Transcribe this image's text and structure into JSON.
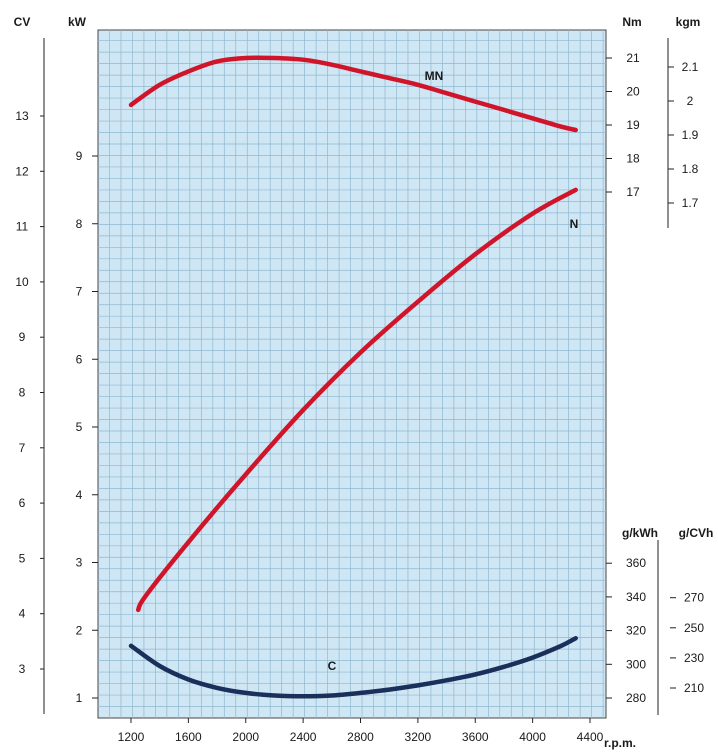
{
  "chart_data": {
    "type": "line",
    "x_label": "r.p.m.",
    "x_ticks": [
      1200,
      1600,
      2000,
      2400,
      2800,
      3200,
      3600,
      4000,
      4400
    ],
    "xlim": [
      1000,
      4400
    ],
    "grid": true,
    "axes": {
      "cv": {
        "label": "CV",
        "ticks": [
          3,
          4,
          5,
          6,
          7,
          8,
          9,
          10,
          11,
          12,
          13
        ]
      },
      "kw": {
        "label": "kW",
        "ticks": [
          1,
          2,
          3,
          4,
          5,
          6,
          7,
          8,
          9
        ]
      },
      "nm": {
        "label": "Nm",
        "ticks": [
          17,
          18,
          19,
          20,
          21
        ]
      },
      "kgm": {
        "label": "kgm",
        "ticks": [
          "1.7",
          "1.8",
          "1.9",
          "2",
          "2.1"
        ]
      },
      "gkwh": {
        "label": "g/kWh",
        "ticks": [
          280,
          300,
          320,
          340,
          360
        ]
      },
      "gcvh": {
        "label": "g/CVh",
        "ticks": [
          210,
          230,
          250,
          270
        ]
      }
    },
    "series": [
      {
        "name": "MN",
        "axis": "nm",
        "color": "#d0152b",
        "x": [
          1200,
          1400,
          1600,
          1800,
          2000,
          2200,
          2400,
          2600,
          2800,
          3000,
          3200,
          3400,
          3600,
          3800,
          4000,
          4200,
          4300
        ],
        "y": [
          19.6,
          20.2,
          20.6,
          20.9,
          21.0,
          21.0,
          20.95,
          20.8,
          20.6,
          20.4,
          20.2,
          19.95,
          19.7,
          19.45,
          19.2,
          18.95,
          18.85
        ]
      },
      {
        "name": "N",
        "axis": "kw",
        "color": "#d0152b",
        "x": [
          1250,
          1300,
          1600,
          2000,
          2400,
          2800,
          3200,
          3600,
          4000,
          4300
        ],
        "y": [
          2.3,
          2.5,
          3.3,
          4.3,
          5.25,
          6.1,
          6.85,
          7.55,
          8.15,
          8.5
        ]
      },
      {
        "name": "C",
        "axis": "gkwh",
        "color": "#1a2f5a",
        "x": [
          1200,
          1400,
          1600,
          1800,
          2000,
          2200,
          2400,
          2600,
          2800,
          3000,
          3200,
          3400,
          3600,
          3800,
          4000,
          4200,
          4300
        ],
        "y": [
          311,
          299,
          291,
          286,
          283,
          281.5,
          281,
          281.5,
          283,
          285,
          287.5,
          290.5,
          294,
          298.5,
          304,
          311,
          315.5
        ]
      }
    ],
    "annotations": [
      "MN",
      "N",
      "C"
    ]
  },
  "colors": {
    "grid_bg": "#cfe7f4",
    "grid_line": "#8fb7cf",
    "curve_red": "#d0152b",
    "curve_blue": "#1a2f5a"
  }
}
